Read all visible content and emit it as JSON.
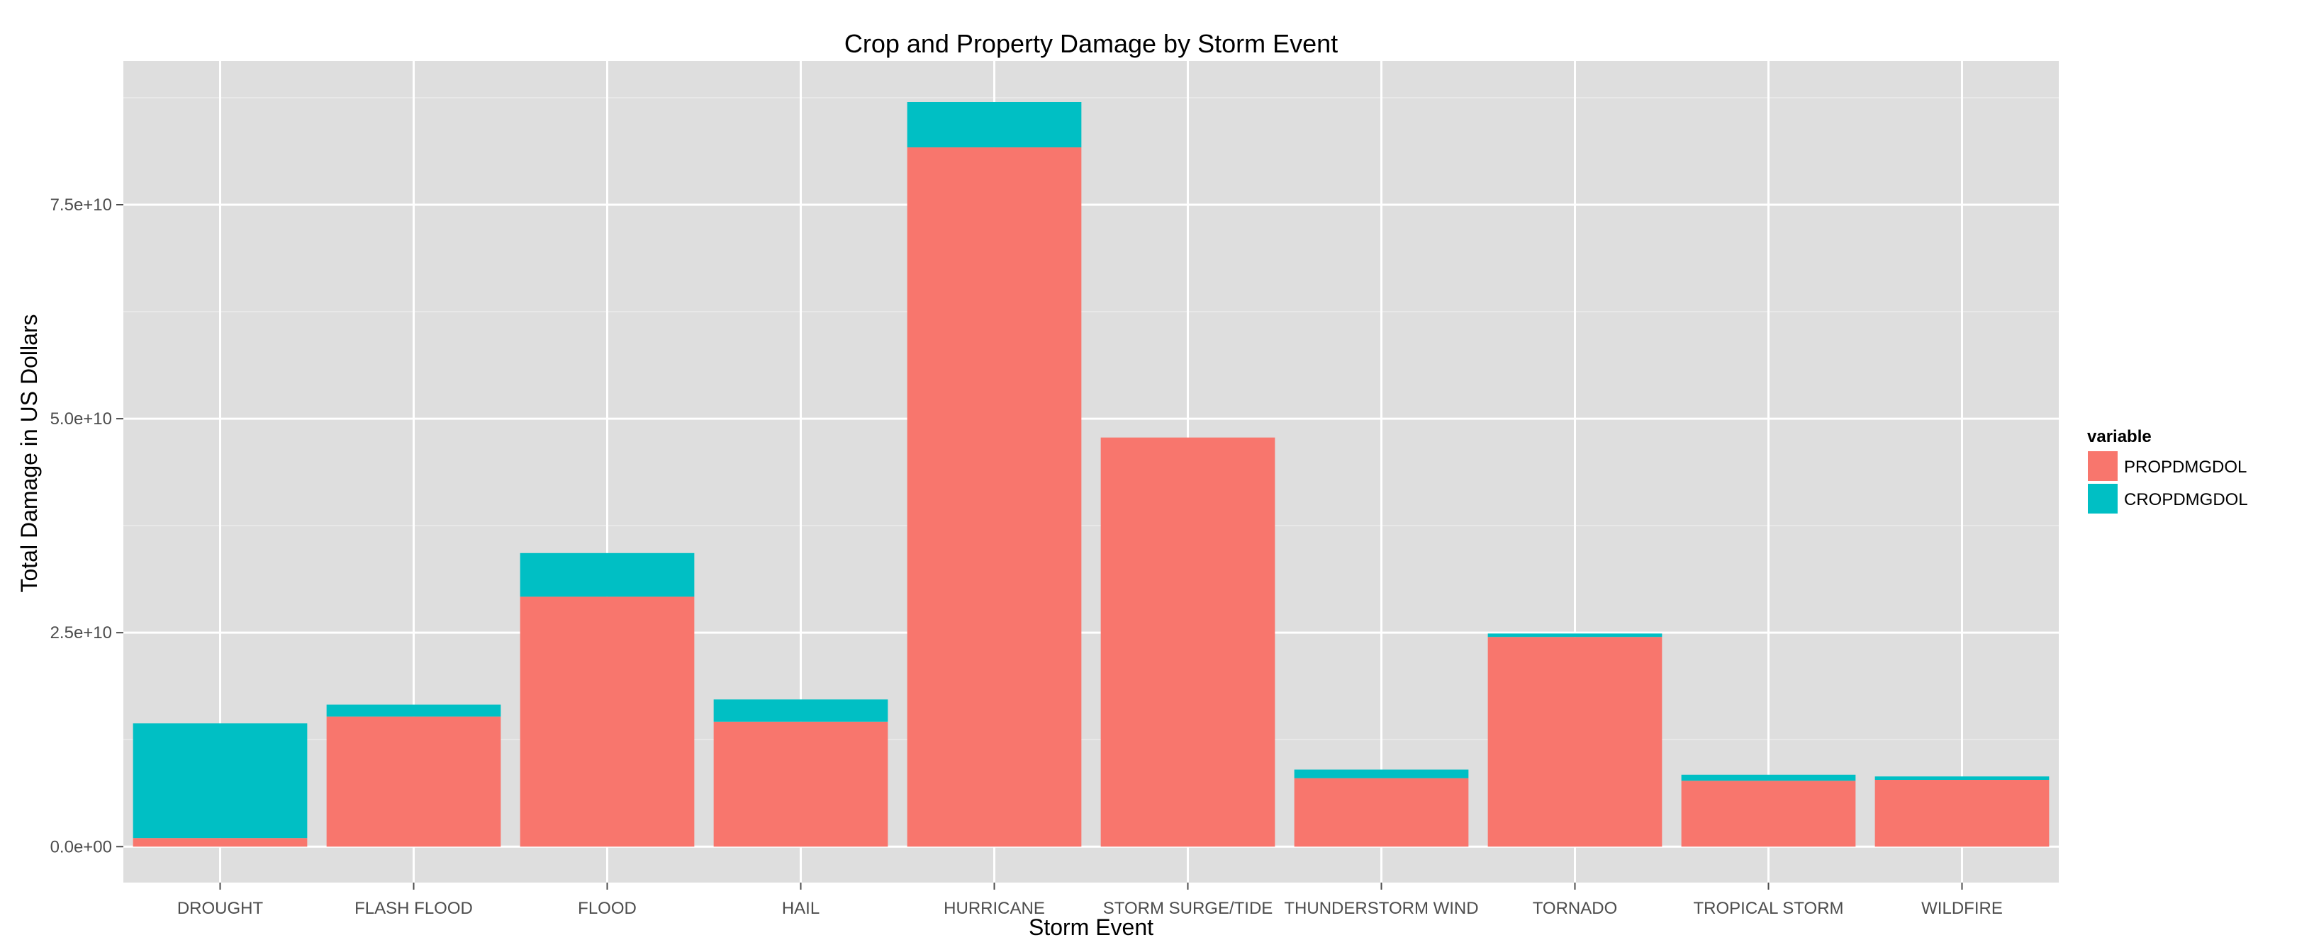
{
  "chart_data": {
    "type": "bar",
    "stacked": true,
    "title": "Crop and Property Damage by Storm Event",
    "xlabel": "Storm Event",
    "ylabel": "Total Damage in US Dollars",
    "categories": [
      "DROUGHT",
      "FLASH FLOOD",
      "FLOOD",
      "HAIL",
      "HURRICANE",
      "STORM SURGE/TIDE",
      "THUNDERSTORM WIND",
      "TORNADO",
      "TROPICAL STORM",
      "WILDFIRE"
    ],
    "series": [
      {
        "name": "PROPDMGDOL",
        "color": "#F8766D",
        "values": [
          1000000000.0,
          15200000000.0,
          29200000000.0,
          14600000000.0,
          81700000000.0,
          47800000000.0,
          8000000000.0,
          24500000000.0,
          7700000000.0,
          7800000000.0
        ]
      },
      {
        "name": "CROPDMGDOL",
        "color": "#00BFC4",
        "values": [
          13400000000.0,
          1400000000.0,
          5100000000.0,
          2600000000.0,
          5300000000.0,
          0.0,
          1000000000.0,
          400000000.0,
          700000000.0,
          400000000.0
        ]
      }
    ],
    "ylim": [
      -4200000000.0,
      91800000000.0
    ],
    "yticks": [
      0,
      25000000000,
      50000000000,
      75000000000
    ],
    "ytick_labels": [
      "0.0e+00",
      "2.5e+10",
      "5.0e+10",
      "7.5e+10"
    ],
    "grid": true,
    "legend": {
      "title": "variable",
      "position": "right"
    }
  },
  "colors": {
    "panel": "#DEDEDE",
    "grid_major": "#FFFFFF",
    "grid_minor": "#EBEBEB"
  }
}
